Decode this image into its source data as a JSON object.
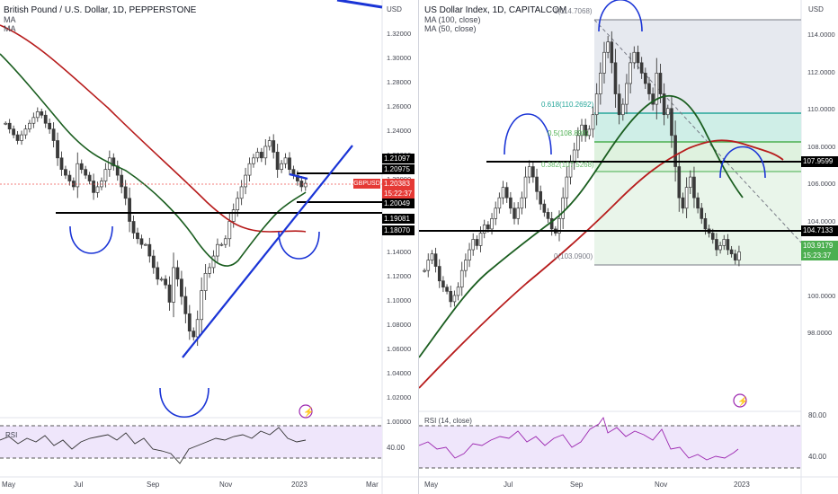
{
  "colors": {
    "up": "#26a69a",
    "down": "#ef5350",
    "candle_dark": "#3a3a3a",
    "ma_red": "#b71c1c",
    "ma_green": "#1b5e20",
    "trend_blue": "#1a34d6",
    "price_tag": "#e53935",
    "rsi_line": "#7e57c2",
    "rsi_band": "#efe6fb",
    "fib_618": "#4db6ac",
    "fib_05": "#4caf50",
    "fib_0382": "#81c784",
    "fib_zone_grey": "#e0e3eb",
    "fib_zone_teal": "#d0efe9",
    "fib_zone_green": "#e6f4e7"
  },
  "left": {
    "header": {
      "title": "British Pound / U.S. Dollar, 1D, PEPPERSTONE",
      "ma1": "MA",
      "ma2": "MA"
    },
    "currency": "USD",
    "price_axis": [
      "1.32000",
      "1.30000",
      "1.28000",
      "1.26000",
      "1.24000",
      "1.22000",
      "1.20000",
      "1.18000",
      "1.16000",
      "1.14000",
      "1.12000",
      "1.10000",
      "1.08000",
      "1.06000",
      "1.04000",
      "1.02000",
      "1.00000"
    ],
    "levels": [
      "1.21097",
      "1.20975",
      "1.20049",
      "1.19081",
      "1.18070"
    ],
    "symbol_tag": "GBPUSD",
    "last_price": "1.20383",
    "countdown": "15:22:37",
    "rsi_label": "RSI",
    "rsi_axis": [
      "40.00"
    ],
    "time_axis": [
      "May",
      "Jul",
      "Sep",
      "Nov",
      "2023",
      "Mar"
    ],
    "event_icon": "lightning-icon"
  },
  "right": {
    "header": {
      "title": "US Dollar Index, 1D, CAPITALCOM",
      "ma1": "MA (100, close)",
      "ma2": "MA (50, close)"
    },
    "currency": "USD",
    "price_axis": [
      "114.0000",
      "112.0000",
      "110.0000",
      "108.0000",
      "106.0000",
      "104.0000",
      "102.0000",
      "100.0000",
      "98.0000"
    ],
    "levels": [
      "107.9599",
      "104.7133"
    ],
    "last_price": "103.9179",
    "countdown": "15:23:37",
    "fib": [
      {
        "label": "1(114.7068)"
      },
      {
        "label": "0.618(110.2692)"
      },
      {
        "label": "0.5(108.898)"
      },
      {
        "label": "0.382(107.5268)"
      },
      {
        "label": "0(103.0900)"
      }
    ],
    "rsi_label": "RSI (14, close)",
    "rsi_axis": [
      "80.00",
      "40.00"
    ],
    "time_axis": [
      "May",
      "Jul",
      "Sep",
      "Nov",
      "2023"
    ],
    "event_icon": "lightning-icon"
  },
  "chart_data": [
    {
      "type": "candlestick",
      "title": "British Pound / U.S. Dollar, 1D, PEPPERSTONE",
      "ylim": [
        1.0,
        1.33
      ],
      "x_ticks": [
        "May",
        "Jul",
        "Sep",
        "Nov",
        "2023",
        "Mar"
      ],
      "close_series": [
        1.255,
        1.25,
        1.245,
        1.24,
        1.245,
        1.25,
        1.255,
        1.26,
        1.265,
        1.262,
        1.255,
        1.25,
        1.24,
        1.225,
        1.215,
        1.21,
        1.205,
        1.2,
        1.22,
        1.215,
        1.21,
        1.205,
        1.195,
        1.2,
        1.205,
        1.215,
        1.225,
        1.218,
        1.21,
        1.2,
        1.19,
        1.17,
        1.16,
        1.155,
        1.15,
        1.15,
        1.14,
        1.13,
        1.12,
        1.12,
        1.115,
        1.1,
        1.13,
        1.12,
        1.105,
        1.09,
        1.075,
        1.07,
        1.085,
        1.11,
        1.125,
        1.13,
        1.14,
        1.15,
        1.15,
        1.155,
        1.17,
        1.18,
        1.19,
        1.2,
        1.21,
        1.22,
        1.225,
        1.23,
        1.225,
        1.235,
        1.24,
        1.23,
        1.215,
        1.22,
        1.225,
        1.215,
        1.21,
        1.205,
        1.2,
        1.203
      ],
      "annotations": [
        "1.21097",
        "1.20975",
        "1.20049",
        "1.19081",
        "1.18070"
      ]
    },
    {
      "type": "candlestick",
      "title": "US Dollar Index, 1D, CAPITALCOM",
      "ylim": [
        97.0,
        115.0
      ],
      "x_ticks": [
        "May",
        "Jul",
        "Sep",
        "Nov",
        "2023"
      ],
      "close_series": [
        103.0,
        103.5,
        103.8,
        103.2,
        102.5,
        102.2,
        102.0,
        101.5,
        101.8,
        102.2,
        103.0,
        103.5,
        104.0,
        104.5,
        104.2,
        104.8,
        105.2,
        105.0,
        105.5,
        106.0,
        106.5,
        107.0,
        106.5,
        106.0,
        105.5,
        106.0,
        106.5,
        107.5,
        108.0,
        107.5,
        106.8,
        106.2,
        105.8,
        105.5,
        105.0,
        104.8,
        105.5,
        106.5,
        107.5,
        108.2,
        108.8,
        109.5,
        110.0,
        109.5,
        109.8,
        110.5,
        111.5,
        112.5,
        113.5,
        114.0,
        113.0,
        111.5,
        110.5,
        111.0,
        112.0,
        113.0,
        113.5,
        113.0,
        112.5,
        112.0,
        111.5,
        111.0,
        112.5,
        111.5,
        110.5,
        110.8,
        109.5,
        108.0,
        106.5,
        106.0,
        107.0,
        107.5,
        106.5,
        106.0,
        105.5,
        105.0,
        104.8,
        104.5,
        104.0,
        104.2,
        104.5,
        104.0,
        103.8,
        103.5,
        103.9
      ],
      "fib_levels": [
        {
          "ratio": "1",
          "value": 114.7068
        },
        {
          "ratio": "0.618",
          "value": 110.2692
        },
        {
          "ratio": "0.5",
          "value": 108.898
        },
        {
          "ratio": "0.382",
          "value": 107.5268
        },
        {
          "ratio": "0",
          "value": 103.09
        }
      ],
      "annotations": [
        "107.9599",
        "104.7133",
        "103.9179"
      ]
    }
  ]
}
